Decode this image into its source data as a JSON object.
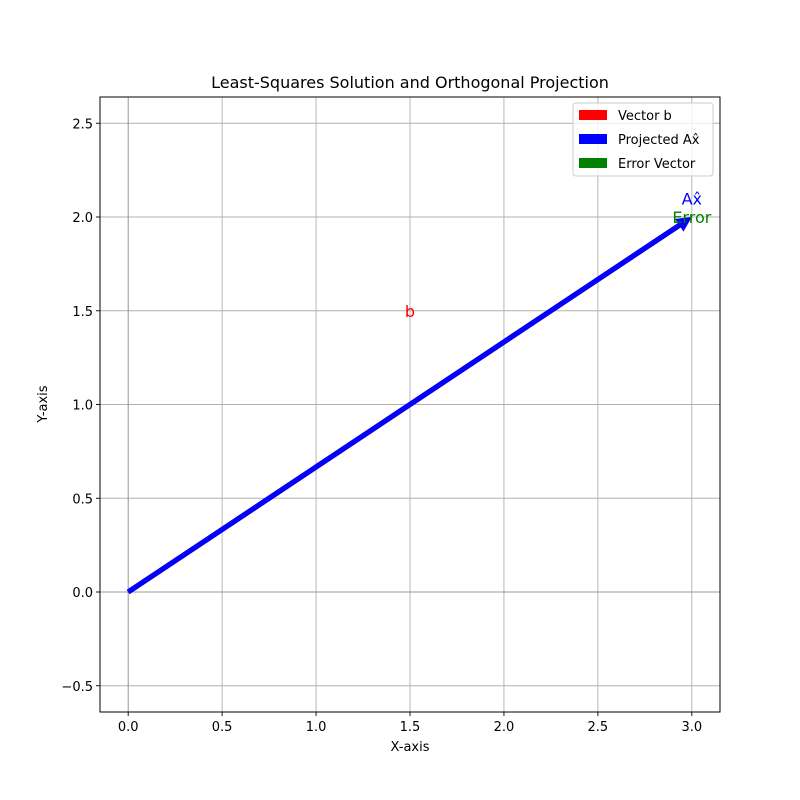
{
  "chart_data": {
    "type": "line",
    "title": "Least-Squares Solution and Orthogonal Projection",
    "xlabel": "X-axis",
    "ylabel": "Y-axis",
    "xlim": [
      -0.15,
      3.15
    ],
    "ylim": [
      -0.64,
      2.64
    ],
    "xticks": [
      0.0,
      0.5,
      1.0,
      1.5,
      2.0,
      2.5,
      3.0
    ],
    "xtick_labels": [
      "0.0",
      "0.5",
      "1.0",
      "1.5",
      "2.0",
      "2.5",
      "3.0"
    ],
    "yticks": [
      -0.5,
      0.0,
      0.5,
      1.0,
      1.5,
      2.0,
      2.5
    ],
    "ytick_labels": [
      "−0.5",
      "0.0",
      "0.5",
      "1.0",
      "1.5",
      "2.0",
      "2.5"
    ],
    "grid": true,
    "legend_position": "top-right",
    "series": [
      {
        "name": "Vector b",
        "color": "#ff0000",
        "from": [
          0,
          0
        ],
        "to": [
          3,
          2
        ]
      },
      {
        "name": "Projected Ax̂",
        "color": "#0000ff",
        "from": [
          0,
          0
        ],
        "to": [
          3,
          2
        ]
      },
      {
        "name": "Error Vector",
        "color": "#008000",
        "from": [
          3,
          2
        ],
        "to": [
          3,
          2
        ]
      }
    ],
    "annotations": [
      {
        "text": "b",
        "x": 1.5,
        "y": 1.5,
        "color": "#ff0000"
      },
      {
        "text": "Ax̂",
        "x": 3.0,
        "y": 2.1,
        "color": "#0000ff"
      },
      {
        "text": "Error",
        "x": 3.0,
        "y": 2.0,
        "color": "#008000"
      }
    ]
  }
}
